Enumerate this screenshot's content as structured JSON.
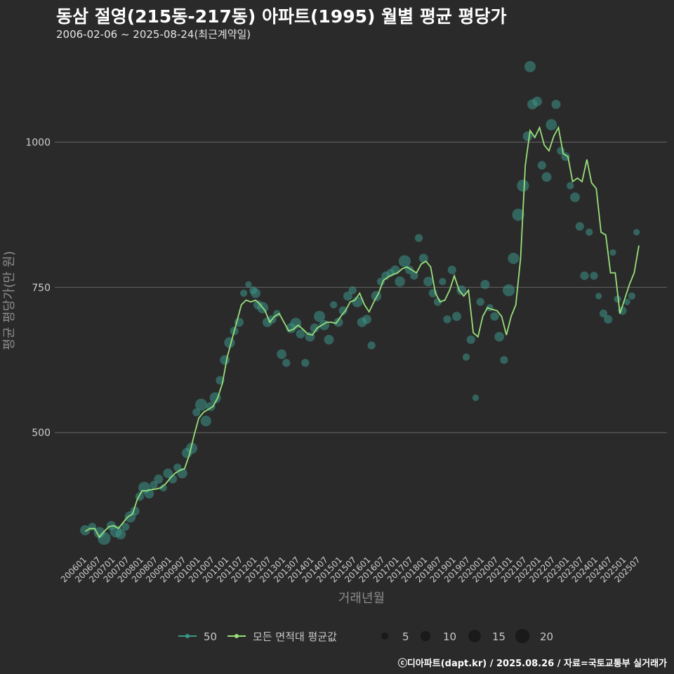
{
  "header": {
    "title": "동삼 절영(215동-217동) 아파트(1995) 월별 평균 평당가",
    "subtitle": "2006-02-06 ~ 2025-08-24(최근계약일)",
    "caption": "ⓒ디아파트(dapt.kr) / 2025.08.26 / 자료=국토교통부 실거래가"
  },
  "colors": {
    "background": "#2b2a2b",
    "grid": "#666666",
    "line": "#98e07a",
    "point": "#3a9688",
    "legend_size_point": "#1a1a1a"
  },
  "chart_data": {
    "type": "line",
    "xlabel": "거래년월",
    "ylabel": "평균 평당가(만 원)",
    "ylim": [
      290,
      1160
    ],
    "y_ticks": [
      500,
      750,
      1000
    ],
    "y_tick_labels": [
      "500",
      "750",
      "1000"
    ],
    "x_start": "2006-01",
    "x_end": "2025-08",
    "x_tick_labels": [
      "200601",
      "200607",
      "200701",
      "200707",
      "200801",
      "200807",
      "200901",
      "200907",
      "201001",
      "201007",
      "201101",
      "201107",
      "201201",
      "201207",
      "201301",
      "201307",
      "201401",
      "201407",
      "201501",
      "201507",
      "201601",
      "201607",
      "201701",
      "201707",
      "201801",
      "201807",
      "201901",
      "201907",
      "202001",
      "202007",
      "202101",
      "202107",
      "202201",
      "202207",
      "202301",
      "202307",
      "202401",
      "202407",
      "202501",
      "202507"
    ],
    "grid": "horizontal",
    "legend_position": "bottom",
    "series": [
      {
        "name": "모든 면적대 평균값",
        "type": "line",
        "points": [
          [
            "2006-02",
            330
          ],
          [
            "2006-04",
            335
          ],
          [
            "2006-06",
            335
          ],
          [
            "2006-08",
            320
          ],
          [
            "2006-10",
            330
          ],
          [
            "2006-12",
            338
          ],
          [
            "2007-02",
            340
          ],
          [
            "2007-04",
            335
          ],
          [
            "2007-06",
            345
          ],
          [
            "2007-08",
            355
          ],
          [
            "2007-10",
            360
          ],
          [
            "2007-12",
            385
          ],
          [
            "2008-02",
            400
          ],
          [
            "2008-04",
            400
          ],
          [
            "2008-06",
            402
          ],
          [
            "2008-08",
            403
          ],
          [
            "2008-10",
            405
          ],
          [
            "2008-12",
            412
          ],
          [
            "2009-02",
            422
          ],
          [
            "2009-04",
            430
          ],
          [
            "2009-06",
            435
          ],
          [
            "2009-08",
            438
          ],
          [
            "2009-10",
            462
          ],
          [
            "2009-12",
            495
          ],
          [
            "2010-02",
            525
          ],
          [
            "2010-04",
            535
          ],
          [
            "2010-06",
            540
          ],
          [
            "2010-08",
            545
          ],
          [
            "2010-10",
            560
          ],
          [
            "2010-12",
            585
          ],
          [
            "2011-02",
            630
          ],
          [
            "2011-04",
            660
          ],
          [
            "2011-06",
            690
          ],
          [
            "2011-08",
            720
          ],
          [
            "2011-10",
            728
          ],
          [
            "2011-12",
            725
          ],
          [
            "2012-02",
            728
          ],
          [
            "2012-04",
            720
          ],
          [
            "2012-06",
            710
          ],
          [
            "2012-08",
            690
          ],
          [
            "2012-10",
            700
          ],
          [
            "2012-12",
            705
          ],
          [
            "2013-02",
            690
          ],
          [
            "2013-04",
            675
          ],
          [
            "2013-06",
            678
          ],
          [
            "2013-08",
            685
          ],
          [
            "2013-10",
            678
          ],
          [
            "2013-12",
            670
          ],
          [
            "2014-02",
            668
          ],
          [
            "2014-04",
            680
          ],
          [
            "2014-06",
            685
          ],
          [
            "2014-08",
            690
          ],
          [
            "2014-10",
            690
          ],
          [
            "2014-12",
            688
          ],
          [
            "2015-02",
            700
          ],
          [
            "2015-04",
            710
          ],
          [
            "2015-06",
            725
          ],
          [
            "2015-08",
            728
          ],
          [
            "2015-10",
            740
          ],
          [
            "2015-12",
            720
          ],
          [
            "2016-02",
            708
          ],
          [
            "2016-04",
            725
          ],
          [
            "2016-06",
            740
          ],
          [
            "2016-08",
            762
          ],
          [
            "2016-10",
            768
          ],
          [
            "2016-12",
            772
          ],
          [
            "2017-02",
            775
          ],
          [
            "2017-04",
            782
          ],
          [
            "2017-06",
            785
          ],
          [
            "2017-08",
            780
          ],
          [
            "2017-10",
            775
          ],
          [
            "2017-12",
            790
          ],
          [
            "2018-02",
            795
          ],
          [
            "2018-04",
            785
          ],
          [
            "2018-06",
            740
          ],
          [
            "2018-08",
            725
          ],
          [
            "2018-10",
            728
          ],
          [
            "2018-12",
            745
          ],
          [
            "2019-02",
            770
          ],
          [
            "2019-04",
            745
          ],
          [
            "2019-06",
            735
          ],
          [
            "2019-08",
            745
          ],
          [
            "2019-10",
            672
          ],
          [
            "2019-12",
            665
          ],
          [
            "2020-02",
            700
          ],
          [
            "2020-04",
            715
          ],
          [
            "2020-06",
            712
          ],
          [
            "2020-08",
            710
          ],
          [
            "2020-10",
            700
          ],
          [
            "2020-12",
            668
          ],
          [
            "2021-02",
            700
          ],
          [
            "2021-04",
            720
          ],
          [
            "2021-06",
            800
          ],
          [
            "2021-08",
            960
          ],
          [
            "2021-10",
            1020
          ],
          [
            "2021-12",
            1008
          ],
          [
            "2022-02",
            1025
          ],
          [
            "2022-04",
            995
          ],
          [
            "2022-06",
            985
          ],
          [
            "2022-08",
            1010
          ],
          [
            "2022-10",
            1025
          ],
          [
            "2022-12",
            980
          ],
          [
            "2023-02",
            975
          ],
          [
            "2023-04",
            932
          ],
          [
            "2023-06",
            938
          ],
          [
            "2023-08",
            932
          ],
          [
            "2023-10",
            970
          ],
          [
            "2023-12",
            930
          ],
          [
            "2024-02",
            920
          ],
          [
            "2024-04",
            845
          ],
          [
            "2024-06",
            840
          ],
          [
            "2024-08",
            775
          ],
          [
            "2024-10",
            775
          ],
          [
            "2024-12",
            705
          ],
          [
            "2025-02",
            730
          ],
          [
            "2025-04",
            755
          ],
          [
            "2025-06",
            775
          ],
          [
            "2025-08",
            822
          ]
        ]
      },
      {
        "name": "50",
        "type": "scatter",
        "points": [
          [
            "2006-02",
            332,
            10
          ],
          [
            "2006-05",
            338,
            6
          ],
          [
            "2006-08",
            328,
            12
          ],
          [
            "2006-10",
            318,
            16
          ],
          [
            "2007-01",
            340,
            8
          ],
          [
            "2007-03",
            330,
            14
          ],
          [
            "2007-05",
            325,
            10
          ],
          [
            "2007-07",
            338,
            6
          ],
          [
            "2007-09",
            355,
            12
          ],
          [
            "2007-11",
            365,
            8
          ],
          [
            "2008-01",
            390,
            7
          ],
          [
            "2008-03",
            405,
            14
          ],
          [
            "2008-05",
            395,
            9
          ],
          [
            "2008-07",
            410,
            6
          ],
          [
            "2008-09",
            420,
            8
          ],
          [
            "2008-11",
            405,
            5
          ],
          [
            "2009-01",
            430,
            9
          ],
          [
            "2009-03",
            420,
            7
          ],
          [
            "2009-05",
            440,
            6
          ],
          [
            "2009-07",
            430,
            10
          ],
          [
            "2009-09",
            465,
            10
          ],
          [
            "2009-11",
            473,
            12
          ],
          [
            "2010-01",
            535,
            6
          ],
          [
            "2010-03",
            548,
            14
          ],
          [
            "2010-05",
            520,
            11
          ],
          [
            "2010-07",
            545,
            8
          ],
          [
            "2010-09",
            560,
            12
          ],
          [
            "2010-11",
            590,
            7
          ],
          [
            "2011-01",
            625,
            9
          ],
          [
            "2011-03",
            655,
            11
          ],
          [
            "2011-05",
            675,
            7
          ],
          [
            "2011-07",
            690,
            8
          ],
          [
            "2011-09",
            740,
            5
          ],
          [
            "2011-11",
            755,
            4
          ],
          [
            "2012-01",
            745,
            6
          ],
          [
            "2012-03",
            720,
            8
          ],
          [
            "2012-05",
            715,
            12
          ],
          [
            "2012-07",
            690,
            9
          ],
          [
            "2012-09",
            695,
            7
          ],
          [
            "2012-11",
            705,
            5
          ],
          [
            "2013-01",
            635,
            9
          ],
          [
            "2013-03",
            620,
            6
          ],
          [
            "2013-05",
            680,
            10
          ],
          [
            "2013-07",
            688,
            12
          ],
          [
            "2013-09",
            670,
            8
          ],
          [
            "2013-11",
            620,
            6
          ],
          [
            "2014-01",
            665,
            9
          ],
          [
            "2014-03",
            680,
            8
          ],
          [
            "2014-05",
            700,
            12
          ],
          [
            "2014-07",
            685,
            10
          ],
          [
            "2014-09",
            660,
            9
          ],
          [
            "2014-11",
            720,
            5
          ],
          [
            "2015-01",
            690,
            8
          ],
          [
            "2015-03",
            710,
            7
          ],
          [
            "2015-05",
            735,
            8
          ],
          [
            "2015-07",
            745,
            6
          ],
          [
            "2015-09",
            725,
            11
          ],
          [
            "2015-11",
            690,
            9
          ],
          [
            "2016-01",
            695,
            8
          ],
          [
            "2016-03",
            650,
            6
          ],
          [
            "2016-05",
            735,
            10
          ],
          [
            "2016-07",
            760,
            6
          ],
          [
            "2016-09",
            770,
            7
          ],
          [
            "2016-11",
            775,
            6
          ],
          [
            "2017-01",
            780,
            8
          ],
          [
            "2017-03",
            760,
            10
          ],
          [
            "2017-05",
            795,
            14
          ],
          [
            "2017-07",
            780,
            7
          ],
          [
            "2017-09",
            770,
            6
          ],
          [
            "2017-11",
            835,
            6
          ],
          [
            "2018-01",
            800,
            8
          ],
          [
            "2018-03",
            760,
            9
          ],
          [
            "2018-05",
            740,
            7
          ],
          [
            "2018-07",
            725,
            6
          ],
          [
            "2018-09",
            760,
            5
          ],
          [
            "2018-11",
            695,
            6
          ],
          [
            "2019-01",
            780,
            7
          ],
          [
            "2019-03",
            700,
            8
          ],
          [
            "2019-05",
            745,
            9
          ],
          [
            "2019-07",
            630,
            5
          ],
          [
            "2019-09",
            660,
            7
          ],
          [
            "2019-11",
            560,
            4
          ],
          [
            "2020-01",
            725,
            6
          ],
          [
            "2020-03",
            755,
            8
          ],
          [
            "2020-05",
            715,
            5
          ],
          [
            "2020-07",
            700,
            7
          ],
          [
            "2020-09",
            665,
            9
          ],
          [
            "2020-11",
            625,
            6
          ],
          [
            "2021-01",
            745,
            14
          ],
          [
            "2021-03",
            800,
            12
          ],
          [
            "2021-05",
            875,
            14
          ],
          [
            "2021-07",
            925,
            14
          ],
          [
            "2021-09",
            1010,
            9
          ],
          [
            "2021-11",
            1065,
            10
          ],
          [
            "2022-01",
            1070,
            9
          ],
          [
            "2022-03",
            960,
            7
          ],
          [
            "2022-05",
            940,
            9
          ],
          [
            "2022-07",
            1030,
            12
          ],
          [
            "2022-09",
            1065,
            8
          ],
          [
            "2022-11",
            985,
            6
          ],
          [
            "2023-01",
            975,
            7
          ],
          [
            "2023-03",
            925,
            5
          ],
          [
            "2023-05",
            905,
            9
          ],
          [
            "2023-07",
            855,
            7
          ],
          [
            "2023-09",
            770,
            7
          ],
          [
            "2023-11",
            845,
            5
          ],
          [
            "2024-01",
            770,
            6
          ],
          [
            "2024-03",
            735,
            4
          ],
          [
            "2024-05",
            705,
            6
          ],
          [
            "2024-07",
            695,
            7
          ],
          [
            "2024-09",
            810,
            4
          ],
          [
            "2024-11",
            730,
            5
          ],
          [
            "2025-01",
            710,
            7
          ],
          [
            "2025-03",
            725,
            4
          ],
          [
            "2025-05",
            735,
            5
          ],
          [
            "2025-07",
            845,
            4
          ],
          [
            "2021-10",
            1130,
            12
          ],
          [
            "2012-02",
            740,
            9
          ]
        ]
      }
    ],
    "size_legend": {
      "values": [
        5,
        10,
        15,
        20
      ],
      "labels": [
        "5",
        "10",
        "15",
        "20"
      ]
    }
  }
}
